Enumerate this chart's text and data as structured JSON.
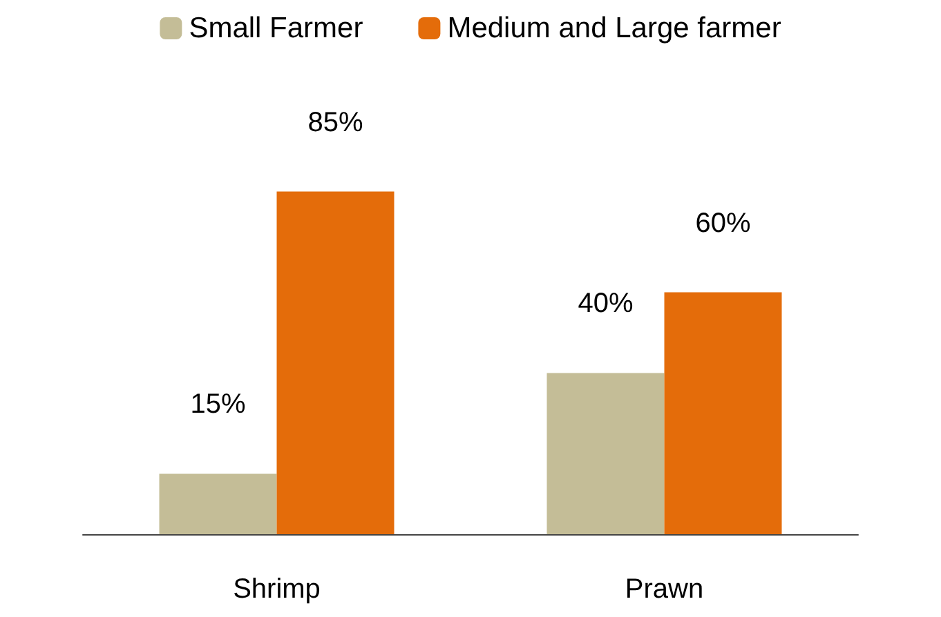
{
  "chart_data": {
    "type": "bar",
    "categories": [
      "Shrimp",
      "Prawn"
    ],
    "series": [
      {
        "name": "Small Farmer",
        "color": "#c4bd97",
        "values": [
          15,
          40
        ],
        "value_labels": [
          "15%",
          "40%"
        ]
      },
      {
        "name": "Medium and Large farmer",
        "color": "#e46c0a",
        "values": [
          85,
          60
        ],
        "value_labels": [
          "85%",
          "60%"
        ]
      }
    ],
    "legend": "top"
  }
}
